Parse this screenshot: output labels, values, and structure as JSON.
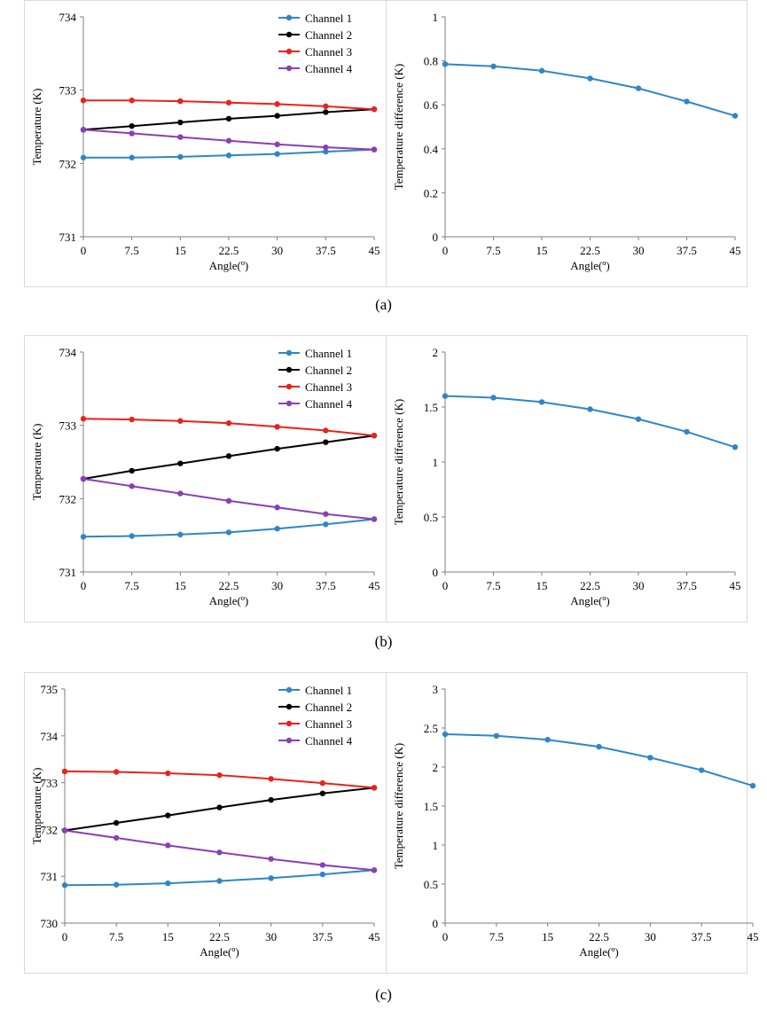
{
  "chart_data": [
    {
      "id": "a-left",
      "type": "line",
      "x": [
        0,
        7.5,
        15,
        22.5,
        30,
        37.5,
        45
      ],
      "x_tick_labels": [
        "0",
        "7.5",
        "15",
        "22.5",
        "30",
        "37.5",
        "45"
      ],
      "xlabel": "Angle(º)",
      "ylabel": "Temperature (K)",
      "ylim": [
        731,
        734
      ],
      "y_tick_labels": [
        "731",
        "732",
        "733",
        "734"
      ],
      "legend": "top-right",
      "series": [
        {
          "name": "Channel 1",
          "color": "#2e86c8",
          "values": [
            732.08,
            732.08,
            732.09,
            732.11,
            732.13,
            732.16,
            732.19
          ]
        },
        {
          "name": "Channel 2",
          "color": "#000000",
          "values": [
            732.46,
            732.51,
            732.56,
            732.61,
            732.65,
            732.7,
            732.74
          ]
        },
        {
          "name": "Channel 3",
          "color": "#e8231a",
          "values": [
            732.86,
            732.86,
            732.85,
            732.83,
            732.81,
            732.78,
            732.74
          ]
        },
        {
          "name": "Channel 4",
          "color": "#8a3fb5",
          "values": [
            732.46,
            732.41,
            732.36,
            732.31,
            732.26,
            732.22,
            732.19
          ]
        }
      ]
    },
    {
      "id": "a-right",
      "type": "line",
      "x": [
        0,
        7.5,
        15,
        22.5,
        30,
        37.5,
        45
      ],
      "x_tick_labels": [
        "0",
        "7.5",
        "15",
        "22.5",
        "30",
        "37.5",
        "45"
      ],
      "xlabel": "Angle(º)",
      "ylabel": "Temperature difference (K)",
      "ylim": [
        0,
        1
      ],
      "y_tick_labels": [
        "0",
        "0.2",
        "0.4",
        "0.6",
        "0.8",
        "1"
      ],
      "series": [
        {
          "name": "Temperature difference",
          "color": "#2e86c8",
          "values": [
            0.785,
            0.775,
            0.755,
            0.72,
            0.675,
            0.615,
            0.55
          ]
        }
      ]
    },
    {
      "id": "b-left",
      "type": "line",
      "x": [
        0,
        7.5,
        15,
        22.5,
        30,
        37.5,
        45
      ],
      "x_tick_labels": [
        "0",
        "7.5",
        "15",
        "22.5",
        "30",
        "37.5",
        "45"
      ],
      "xlabel": "Angle(º)",
      "ylabel": "Temperature (K)",
      "ylim": [
        731,
        734
      ],
      "y_tick_labels": [
        "731",
        "732",
        "733",
        "734"
      ],
      "legend": "top-right",
      "series": [
        {
          "name": "Channel 1",
          "color": "#2e86c8",
          "values": [
            731.48,
            731.49,
            731.51,
            731.54,
            731.59,
            731.65,
            731.72
          ]
        },
        {
          "name": "Channel 2",
          "color": "#000000",
          "values": [
            732.27,
            732.38,
            732.48,
            732.58,
            732.68,
            732.77,
            732.86
          ]
        },
        {
          "name": "Channel 3",
          "color": "#e8231a",
          "values": [
            733.09,
            733.08,
            733.06,
            733.03,
            732.98,
            732.93,
            732.86
          ]
        },
        {
          "name": "Channel 4",
          "color": "#8a3fb5",
          "values": [
            732.27,
            732.17,
            732.07,
            731.97,
            731.88,
            731.79,
            731.72
          ]
        }
      ]
    },
    {
      "id": "b-right",
      "type": "line",
      "x": [
        0,
        7.5,
        15,
        22.5,
        30,
        37.5,
        45
      ],
      "x_tick_labels": [
        "0",
        "7.5",
        "15",
        "22.5",
        "30",
        "37.5",
        "45"
      ],
      "xlabel": "Angle(º)",
      "ylabel": "Temperature difference (K)",
      "ylim": [
        0,
        2
      ],
      "y_tick_labels": [
        "0",
        "0.5",
        "1",
        "1.5",
        "2"
      ],
      "series": [
        {
          "name": "Temperature difference",
          "color": "#2e86c8",
          "values": [
            1.6,
            1.585,
            1.545,
            1.48,
            1.39,
            1.275,
            1.135
          ]
        }
      ]
    },
    {
      "id": "c-left",
      "type": "line",
      "x": [
        0,
        7.5,
        15,
        22.5,
        30,
        37.5,
        45
      ],
      "x_tick_labels": [
        "0",
        "7.5",
        "15",
        "22.5",
        "30",
        "37.5",
        "45"
      ],
      "xlabel": "Angle(º)",
      "ylabel": "Temperature (K)",
      "ylim": [
        730,
        735
      ],
      "y_tick_labels": [
        "730",
        "731",
        "732",
        "733",
        "734",
        "735"
      ],
      "legend": "top-right",
      "series": [
        {
          "name": "Channel 1",
          "color": "#2e86c8",
          "values": [
            730.81,
            730.82,
            730.85,
            730.9,
            730.96,
            731.04,
            731.13
          ]
        },
        {
          "name": "Channel 2",
          "color": "#000000",
          "values": [
            731.98,
            732.14,
            732.3,
            732.47,
            732.63,
            732.77,
            732.89
          ]
        },
        {
          "name": "Channel 3",
          "color": "#e8231a",
          "values": [
            733.24,
            733.23,
            733.2,
            733.16,
            733.08,
            732.99,
            732.89
          ]
        },
        {
          "name": "Channel 4",
          "color": "#8a3fb5",
          "values": [
            731.98,
            731.82,
            731.66,
            731.51,
            731.37,
            731.24,
            731.13
          ]
        }
      ]
    },
    {
      "id": "c-right",
      "type": "line",
      "x": [
        0,
        7.5,
        15,
        22.5,
        30,
        37.5,
        45
      ],
      "x_tick_labels": [
        "0",
        "7.5",
        "15",
        "22.5",
        "30",
        "37.5",
        "45"
      ],
      "xlabel": "Angle(º)",
      "ylabel": "Temperature difference (K)",
      "ylim": [
        0,
        3
      ],
      "y_tick_labels": [
        "0",
        "0.5",
        "1",
        "1.5",
        "2",
        "2.5",
        "3"
      ],
      "series": [
        {
          "name": "Temperature difference",
          "color": "#2e86c8",
          "values": [
            2.42,
            2.4,
            2.35,
            2.26,
            2.12,
            1.96,
            1.76
          ]
        }
      ]
    }
  ],
  "captions": {
    "a": "(a)",
    "b": "(b)",
    "c": "(c)"
  }
}
